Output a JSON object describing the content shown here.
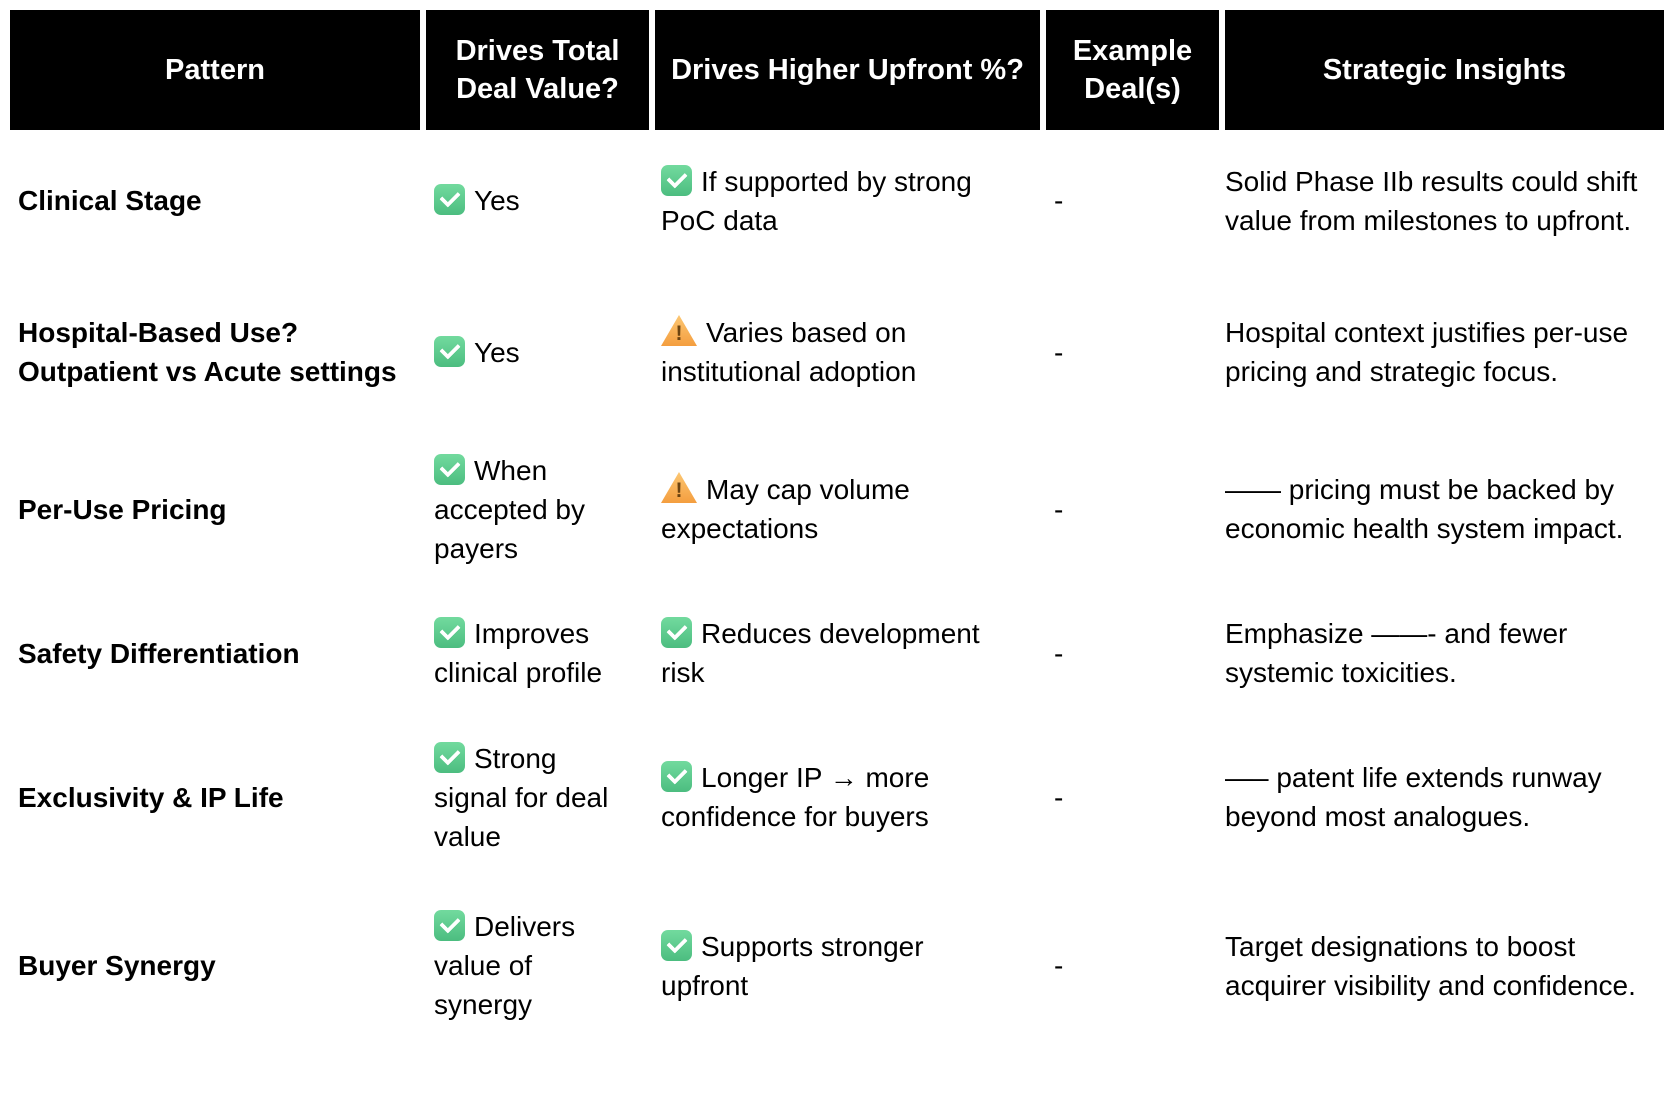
{
  "table": {
    "columns": [
      {
        "key": "pattern",
        "label": "Pattern"
      },
      {
        "key": "total",
        "label": "Drives Total Deal Value?"
      },
      {
        "key": "upfront",
        "label": "Drives Higher Upfront %?"
      },
      {
        "key": "example",
        "label": "Example Deal(s)"
      },
      {
        "key": "insights",
        "label": "Strategic Insights"
      }
    ],
    "rows": [
      {
        "pattern": "Clinical Stage",
        "total": {
          "icon": "check",
          "text": "Yes"
        },
        "upfront": {
          "icon": "check",
          "text": "If supported by strong PoC data"
        },
        "example": "-",
        "insights": "Solid Phase IIb results could shift value from milestones to upfront."
      },
      {
        "pattern": "Hospital-Based Use? Outpatient vs Acute settings",
        "total": {
          "icon": "check",
          "text": "Yes"
        },
        "upfront": {
          "icon": "warning",
          "text": "Varies based on institutional adoption"
        },
        "example": "-",
        "insights": "Hospital context justifies per-use pricing and strategic focus."
      },
      {
        "pattern": "Per-Use Pricing",
        "total": {
          "icon": "check",
          "text": "When accepted by payers"
        },
        "upfront": {
          "icon": "warning",
          "text": "May cap volume expectations"
        },
        "example": "-",
        "insights": "—— pricing must be backed by economic health system impact."
      },
      {
        "pattern": "Safety Differentiation",
        "total": {
          "icon": "check",
          "text": "Improves clinical profile"
        },
        "upfront": {
          "icon": "check",
          "text": "Reduces development risk"
        },
        "example": "-",
        "insights": "Emphasize ——- and fewer systemic toxicities."
      },
      {
        "pattern": "Exclusivity & IP Life",
        "total": {
          "icon": "check",
          "text": "Strong signal for deal value"
        },
        "upfront": {
          "icon": "check",
          "text": "Longer IP → more confidence for buyers"
        },
        "example": "-",
        "insights": "—– patent life extends runway beyond most analogues."
      },
      {
        "pattern": "Buyer Synergy",
        "total": {
          "icon": "check",
          "text": "Delivers value of synergy"
        },
        "upfront": {
          "icon": "check",
          "text": "Supports stronger upfront"
        },
        "example": "-",
        "insights": "Target designations to boost acquirer visibility and confidence."
      }
    ]
  },
  "icons": {
    "check": "check-icon",
    "warning": "warning-icon"
  },
  "colors": {
    "header_bg": "#000000",
    "header_text": "#ffffff",
    "check_green": "#52C283",
    "warning_orange": "#F6A44C",
    "body_text": "#000000"
  }
}
